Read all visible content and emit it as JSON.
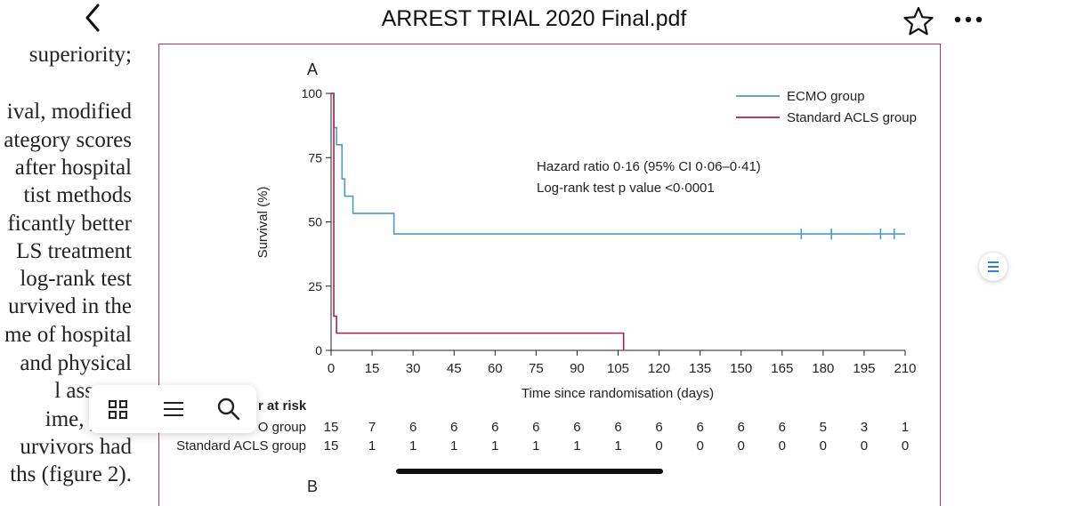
{
  "app": {
    "title": "ARREST TRIAL 2020 Final.pdf",
    "icons": {
      "back": "chevron-left-icon",
      "favorite": "star-icon",
      "more": "more-dots-icon"
    }
  },
  "left_text": [
    "superiority;",
    "",
    "ival, modified",
    "ategory scores",
    "after hospital",
    "tist  methods",
    "ficantly better",
    "LS treatment",
    "log-rank test",
    "urvived in the",
    "me of hospital",
    "and physical",
    "l  assessn",
    "ime, phys",
    "urvivors  had",
    "ths (figure 2)."
  ],
  "toolbar": {
    "icons": [
      "grid-icon",
      "list-icon",
      "search-icon"
    ]
  },
  "chart_data": {
    "type": "line",
    "panel_label": "A",
    "next_panel_label": "B",
    "title": "",
    "xlabel": "Time since randomisation (days)",
    "ylabel": "Survival (%)",
    "xlim": [
      0,
      210
    ],
    "ylim": [
      0,
      100
    ],
    "xticks": [
      0,
      15,
      30,
      45,
      60,
      75,
      90,
      105,
      120,
      135,
      150,
      165,
      180,
      195,
      210
    ],
    "yticks": [
      0,
      25,
      50,
      75,
      100
    ],
    "annotation": [
      "Hazard ratio 0·16 (95% CI 0·06–0·41)",
      "Log-rank test p value <0·0001"
    ],
    "legend_position": "top-right",
    "series": [
      {
        "name": "ECMO group",
        "color": "#4a9cc3",
        "steps": [
          [
            0,
            100
          ],
          [
            1,
            86.7
          ],
          [
            2,
            80
          ],
          [
            4,
            66.7
          ],
          [
            5,
            60
          ],
          [
            8,
            53.3
          ],
          [
            23,
            45.3
          ],
          [
            210,
            45.3
          ]
        ],
        "censored": [
          172,
          183,
          201,
          206
        ]
      },
      {
        "name": "Standard ACLS group",
        "color": "#a8234a",
        "steps": [
          [
            0,
            100
          ],
          [
            1,
            13.3
          ],
          [
            2,
            6.7
          ],
          [
            107,
            0
          ]
        ],
        "censored": []
      }
    ],
    "at_risk": {
      "title": "r at risk",
      "rows": [
        {
          "label": "O group",
          "values": [
            "15",
            "7",
            "6",
            "6",
            "6",
            "6",
            "6",
            "6",
            "6",
            "6",
            "6",
            "6",
            "5",
            "3",
            "1"
          ]
        },
        {
          "label": "Standard ACLS group",
          "values": [
            "15",
            "1",
            "1",
            "1",
            "1",
            "1",
            "1",
            "1",
            "0",
            "0",
            "0",
            "0",
            "0",
            "0",
            "0"
          ]
        }
      ]
    }
  },
  "side_button_icon": "outline-icon"
}
